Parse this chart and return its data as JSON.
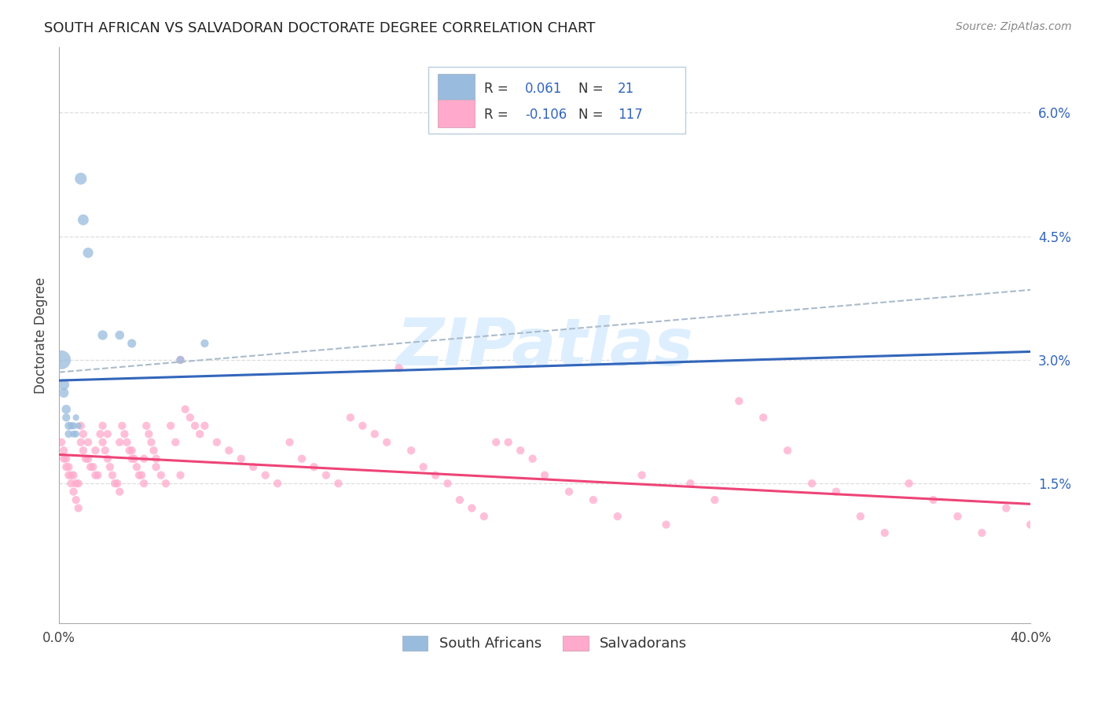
{
  "title": "SOUTH AFRICAN VS SALVADORAN DOCTORATE DEGREE CORRELATION CHART",
  "source": "Source: ZipAtlas.com",
  "ylabel": "Doctorate Degree",
  "xmin": 0.0,
  "xmax": 0.4,
  "ymin": -0.002,
  "ymax": 0.068,
  "ytick_vals": [
    0.015,
    0.03,
    0.045,
    0.06
  ],
  "ytick_labels": [
    "1.5%",
    "3.0%",
    "4.5%",
    "6.0%"
  ],
  "xtick_vals": [
    0.0,
    0.4
  ],
  "xtick_labels": [
    "0.0%",
    "40.0%"
  ],
  "legend_r1": "0.061",
  "legend_n1": "21",
  "legend_r2": "-0.106",
  "legend_n2": "117",
  "blue_color": "#99BBDD",
  "pink_color": "#FFAACC",
  "blue_line_color": "#3366BB",
  "pink_line_color": "#EE4477",
  "dash_line_color": "#AABBCC",
  "watermark_color": "#DDEEFF",
  "text_dark": "#222222",
  "text_blue": "#3366BB",
  "text_pink": "#EE4477",
  "grid_color": "#DDDDDD",
  "blue_trend": [
    0.0,
    0.4,
    0.0275,
    0.031
  ],
  "pink_trend": [
    0.0,
    0.4,
    0.0185,
    0.0125
  ],
  "dash_trend": [
    0.0,
    0.4,
    0.0285,
    0.0385
  ],
  "south_africans_x": [
    0.001,
    0.002,
    0.002,
    0.003,
    0.003,
    0.004,
    0.004,
    0.005,
    0.006,
    0.006,
    0.007,
    0.007,
    0.008,
    0.009,
    0.01,
    0.012,
    0.018,
    0.025,
    0.03,
    0.05,
    0.06
  ],
  "south_africans_y": [
    0.03,
    0.027,
    0.026,
    0.024,
    0.023,
    0.022,
    0.021,
    0.022,
    0.022,
    0.021,
    0.021,
    0.023,
    0.022,
    0.052,
    0.047,
    0.043,
    0.033,
    0.033,
    0.032,
    0.03,
    0.032
  ],
  "south_africans_s": [
    300,
    100,
    80,
    70,
    55,
    55,
    50,
    45,
    45,
    40,
    40,
    35,
    35,
    120,
    100,
    90,
    80,
    70,
    65,
    55,
    55
  ],
  "salvadorans_x": [
    0.001,
    0.002,
    0.003,
    0.004,
    0.005,
    0.006,
    0.007,
    0.008,
    0.009,
    0.01,
    0.011,
    0.012,
    0.013,
    0.014,
    0.015,
    0.016,
    0.017,
    0.018,
    0.019,
    0.02,
    0.021,
    0.022,
    0.023,
    0.024,
    0.025,
    0.026,
    0.027,
    0.028,
    0.029,
    0.03,
    0.031,
    0.032,
    0.033,
    0.034,
    0.035,
    0.036,
    0.037,
    0.038,
    0.039,
    0.04,
    0.042,
    0.044,
    0.046,
    0.048,
    0.05,
    0.052,
    0.054,
    0.056,
    0.058,
    0.06,
    0.065,
    0.07,
    0.075,
    0.08,
    0.085,
    0.09,
    0.095,
    0.1,
    0.105,
    0.11,
    0.115,
    0.12,
    0.125,
    0.13,
    0.135,
    0.14,
    0.145,
    0.15,
    0.155,
    0.16,
    0.165,
    0.17,
    0.175,
    0.18,
    0.185,
    0.19,
    0.195,
    0.2,
    0.21,
    0.22,
    0.23,
    0.24,
    0.25,
    0.26,
    0.27,
    0.28,
    0.29,
    0.3,
    0.31,
    0.32,
    0.33,
    0.34,
    0.35,
    0.36,
    0.37,
    0.38,
    0.39,
    0.4,
    0.002,
    0.003,
    0.004,
    0.005,
    0.006,
    0.007,
    0.008,
    0.009,
    0.01,
    0.012,
    0.015,
    0.018,
    0.02,
    0.025,
    0.03,
    0.035,
    0.04,
    0.05
  ],
  "salvadorans_y": [
    0.02,
    0.019,
    0.018,
    0.017,
    0.016,
    0.016,
    0.015,
    0.015,
    0.02,
    0.019,
    0.018,
    0.018,
    0.017,
    0.017,
    0.016,
    0.016,
    0.021,
    0.02,
    0.019,
    0.018,
    0.017,
    0.016,
    0.015,
    0.015,
    0.014,
    0.022,
    0.021,
    0.02,
    0.019,
    0.018,
    0.018,
    0.017,
    0.016,
    0.016,
    0.015,
    0.022,
    0.021,
    0.02,
    0.019,
    0.018,
    0.016,
    0.015,
    0.022,
    0.02,
    0.03,
    0.024,
    0.023,
    0.022,
    0.021,
    0.022,
    0.02,
    0.019,
    0.018,
    0.017,
    0.016,
    0.015,
    0.02,
    0.018,
    0.017,
    0.016,
    0.015,
    0.023,
    0.022,
    0.021,
    0.02,
    0.029,
    0.019,
    0.017,
    0.016,
    0.015,
    0.013,
    0.012,
    0.011,
    0.02,
    0.02,
    0.019,
    0.018,
    0.016,
    0.014,
    0.013,
    0.011,
    0.016,
    0.01,
    0.015,
    0.013,
    0.025,
    0.023,
    0.019,
    0.015,
    0.014,
    0.011,
    0.009,
    0.015,
    0.013,
    0.011,
    0.009,
    0.012,
    0.01,
    0.018,
    0.017,
    0.016,
    0.015,
    0.014,
    0.013,
    0.012,
    0.022,
    0.021,
    0.02,
    0.019,
    0.022,
    0.021,
    0.02,
    0.019,
    0.018,
    0.017,
    0.016
  ]
}
